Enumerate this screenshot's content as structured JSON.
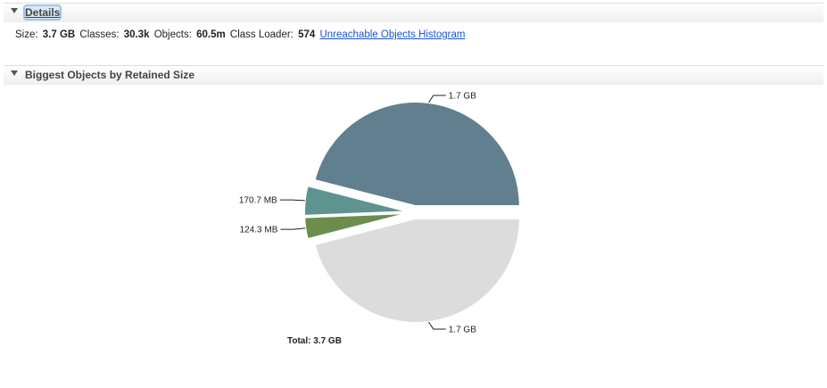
{
  "details": {
    "title": "Details",
    "size_label": "Size:",
    "size_value": "3.7 GB",
    "classes_label": "Classes:",
    "classes_value": "30.3k",
    "objects_label": "Objects:",
    "objects_value": "60.5m",
    "classloader_label": "Class Loader:",
    "classloader_value": "574",
    "histogram_link": "Unreachable Objects Histogram"
  },
  "biggest": {
    "title": "Biggest Objects by Retained Size",
    "total_label": "Total: 3.7 GB"
  },
  "chart_data": {
    "type": "pie",
    "title": "",
    "slices": [
      {
        "label": "1.7 GB",
        "value": 1.7,
        "color": "#617f8f"
      },
      {
        "label": "170.7 MB",
        "value": 0.1707,
        "color": "#5f9390"
      },
      {
        "label": "124.3 MB",
        "value": 0.1243,
        "color": "#6b8e4e"
      },
      {
        "label": "1.7 GB",
        "value": 1.7,
        "color": "#dcdcdc"
      }
    ],
    "total": "Total: 3.7 GB"
  }
}
